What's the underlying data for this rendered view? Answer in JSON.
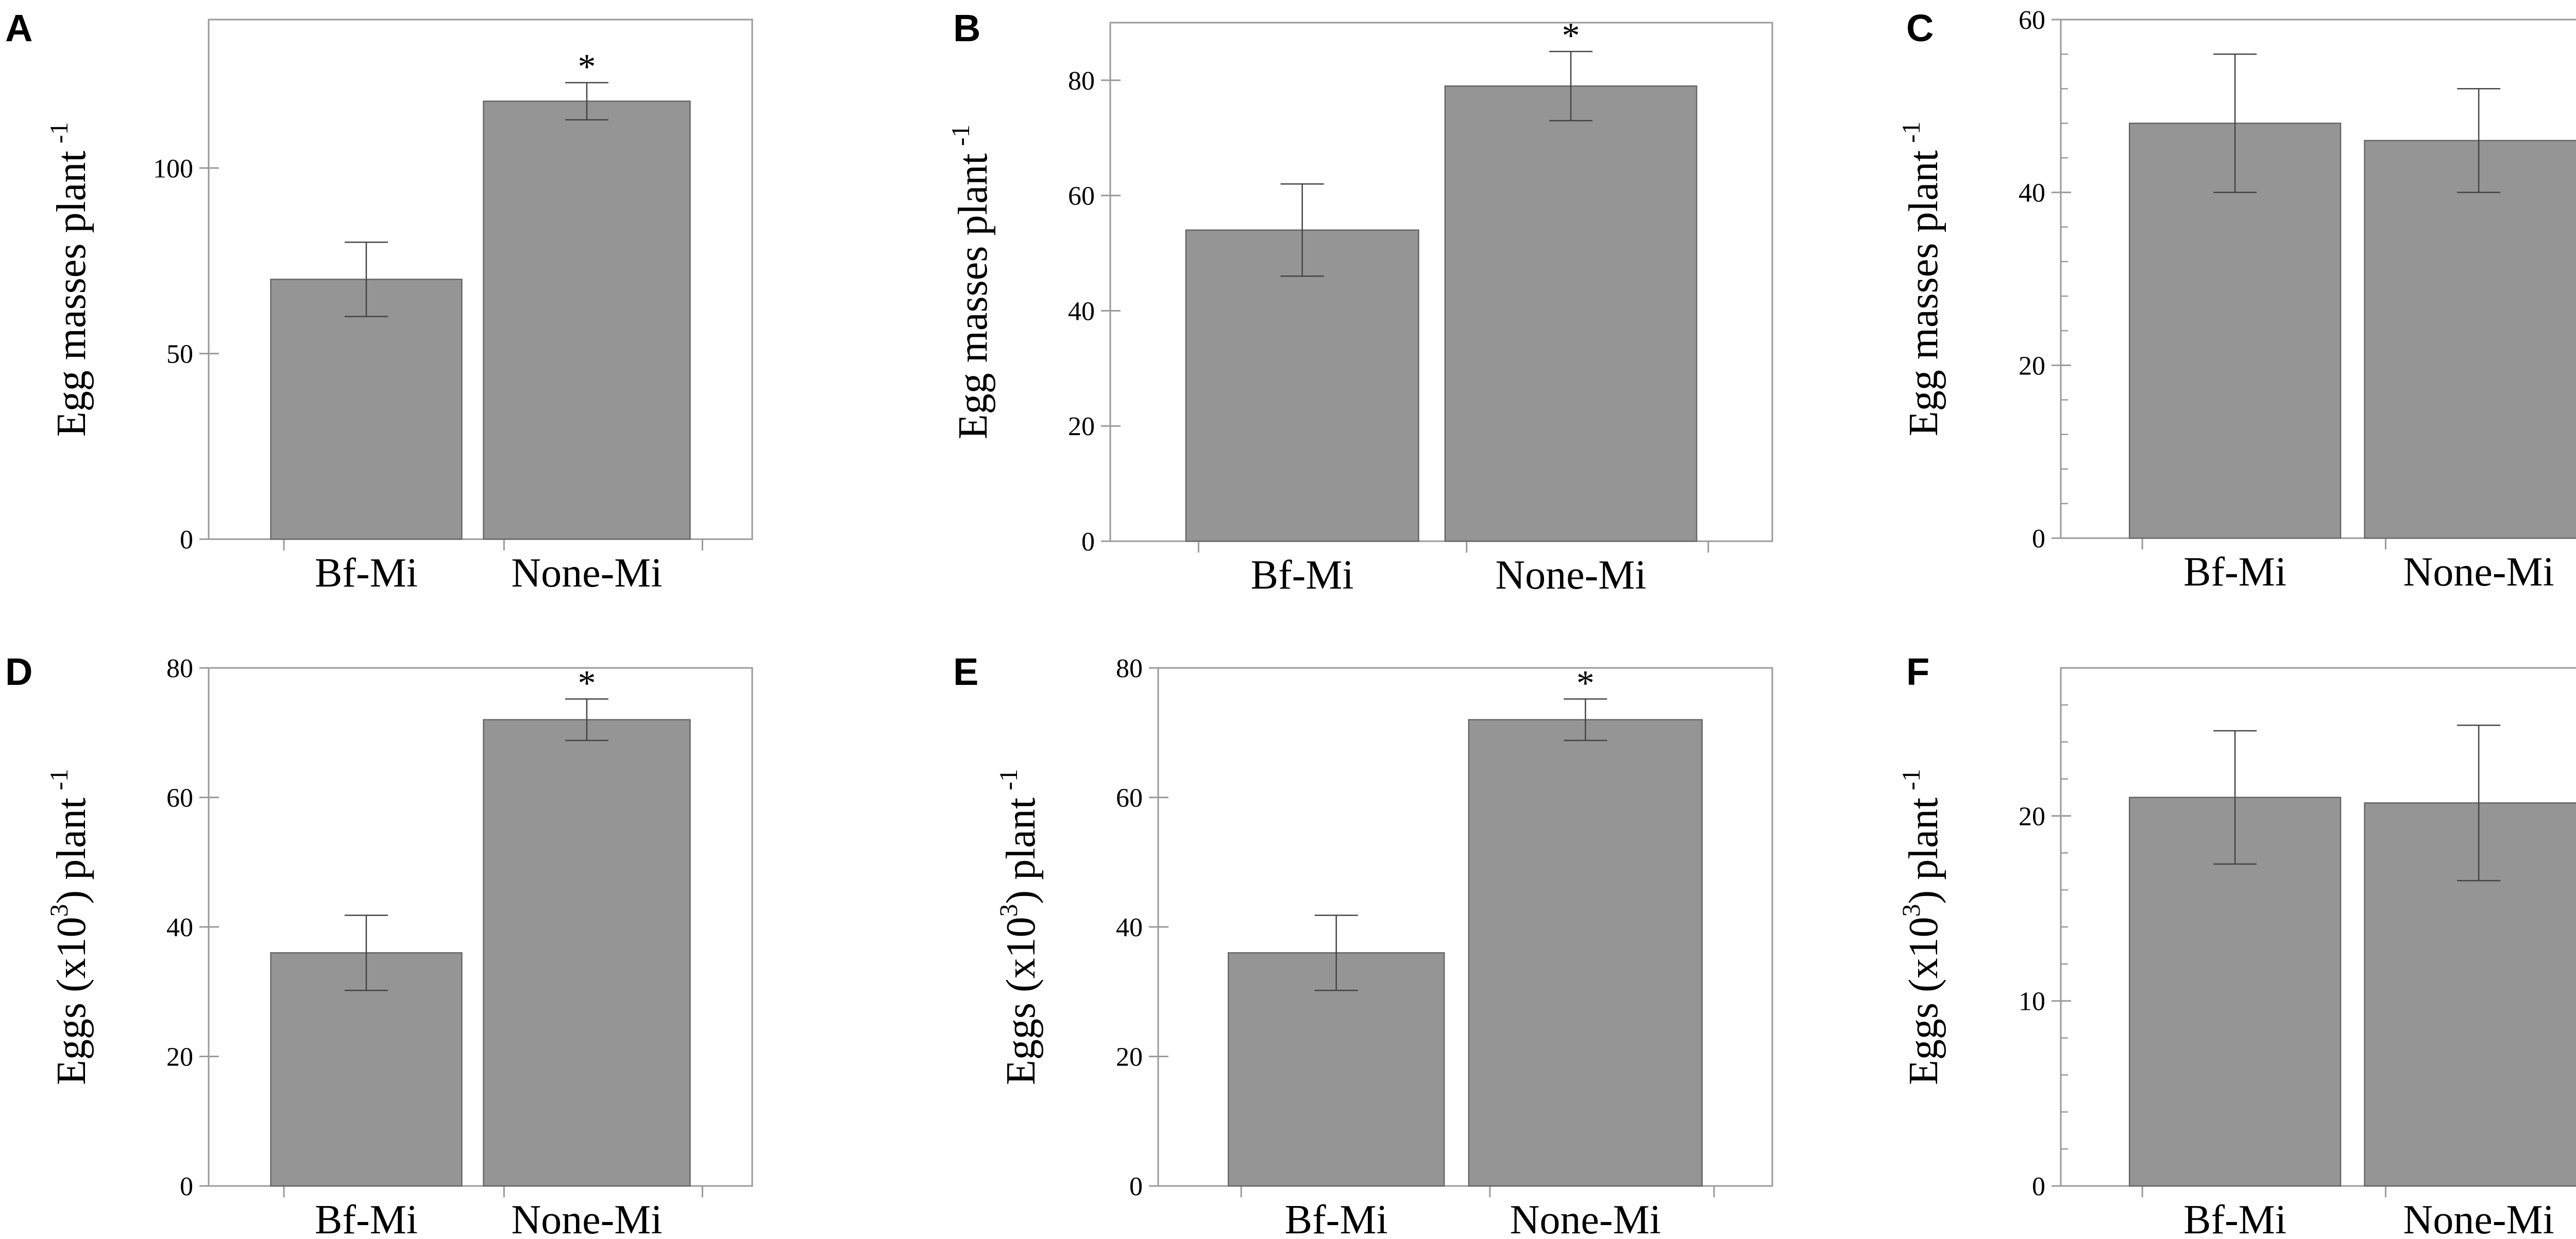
{
  "figure": {
    "colors": {
      "bar": "#959595",
      "bar_edge": "#666666",
      "axis": "#9a9a9a",
      "errorbar": "#444444",
      "text": "#000000"
    }
  },
  "chart_data": [
    {
      "panel": "A",
      "type": "bar",
      "categories": [
        "Bf-Mi",
        "None-Mi"
      ],
      "values": [
        70,
        118
      ],
      "errors": [
        10,
        5
      ],
      "significance": [
        "",
        "*"
      ],
      "ylabel": "Egg masses plant",
      "ylabel_sup": "-1",
      "yticks": [
        0,
        50,
        100
      ],
      "ylim": [
        0,
        140
      ],
      "minor_ticks": false,
      "grid": false
    },
    {
      "panel": "B",
      "type": "bar",
      "categories": [
        "Bf-Mi",
        "None-Mi"
      ],
      "values": [
        54,
        79
      ],
      "errors": [
        8,
        6
      ],
      "significance": [
        "",
        "*"
      ],
      "ylabel": "Egg masses plant",
      "ylabel_sup": "-1",
      "yticks": [
        0,
        20,
        40,
        60,
        80
      ],
      "ylim": [
        0,
        90
      ],
      "minor_ticks": false,
      "grid": false
    },
    {
      "panel": "C",
      "type": "bar",
      "categories": [
        "Bf-Mi",
        "None-Mi"
      ],
      "values": [
        48,
        46
      ],
      "errors": [
        8,
        6
      ],
      "significance": [
        "",
        ""
      ],
      "ylabel": "Egg masses plant",
      "ylabel_sup": "-1",
      "yticks": [
        0,
        20,
        40,
        60
      ],
      "ylim": [
        0,
        60
      ],
      "minor_ticks": true,
      "grid": false
    },
    {
      "panel": "D",
      "type": "bar",
      "categories": [
        "Bf-Mi",
        "None-Mi"
      ],
      "values": [
        36,
        72
      ],
      "errors": [
        5.8,
        3.2
      ],
      "significance": [
        "",
        "*"
      ],
      "ylabel_pre": "Eggs (x10",
      "ylabel_sup1": "3",
      "ylabel_post": ") plant",
      "ylabel_sup2": "-1",
      "yticks": [
        0,
        20,
        40,
        60,
        80
      ],
      "ylim": [
        0,
        80
      ],
      "minor_ticks": false,
      "grid": false
    },
    {
      "panel": "E",
      "type": "bar",
      "categories": [
        "Bf-Mi",
        "None-Mi"
      ],
      "values": [
        36,
        72
      ],
      "errors": [
        5.8,
        3.2
      ],
      "significance": [
        "",
        "*"
      ],
      "ylabel_pre": "Eggs (x10",
      "ylabel_sup1": "3",
      "ylabel_post": ") plant",
      "ylabel_sup2": "-1",
      "yticks": [
        0,
        20,
        40,
        60,
        80
      ],
      "ylim": [
        0,
        80
      ],
      "minor_ticks": false,
      "grid": false
    },
    {
      "panel": "F",
      "type": "bar",
      "categories": [
        "Bf-Mi",
        "None-Mi"
      ],
      "values": [
        21,
        20.7
      ],
      "errors": [
        3.6,
        4.2
      ],
      "significance": [
        "",
        ""
      ],
      "ylabel_pre": "Eggs (x10",
      "ylabel_sup1": "3",
      "ylabel_post": ") plant",
      "ylabel_sup2": "-1",
      "yticks": [
        0,
        10,
        20
      ],
      "ylim": [
        0,
        28
      ],
      "minor_ticks": true,
      "grid": false
    }
  ]
}
